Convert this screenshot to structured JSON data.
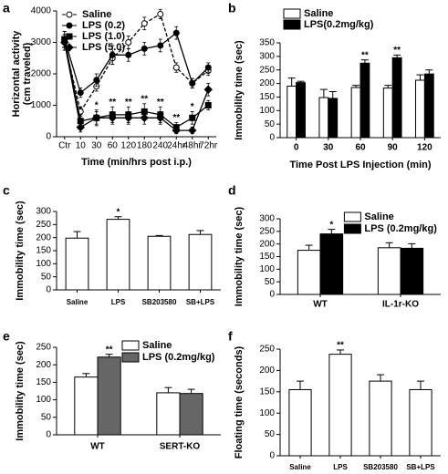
{
  "chart_data": [
    {
      "type": "line",
      "label": "a",
      "categories": [
        "Ctr",
        "10",
        "30",
        "60",
        "120",
        "180",
        "240",
        "24hr",
        "48hr",
        "72hr"
      ],
      "series": [
        {
          "name": "Saline",
          "color": "#000000",
          "marker": "open-circle",
          "dashed": true,
          "values": [
            3000,
            800,
            1600,
            2500,
            3000,
            3600,
            3900,
            2200,
            1700,
            2100
          ],
          "errors": [
            250,
            150,
            150,
            200,
            200,
            200,
            150,
            150,
            150,
            150
          ]
        },
        {
          "name": "LPS (0.2)",
          "color": "#000000",
          "marker": "circle",
          "dashed": false,
          "values": [
            3100,
            1400,
            1800,
            2600,
            2600,
            2800,
            2900,
            3300,
            1700,
            2200
          ],
          "errors": [
            250,
            150,
            200,
            300,
            200,
            200,
            200,
            200,
            150,
            150
          ]
        },
        {
          "name": "LPS (1.0)",
          "color": "#000000",
          "marker": "square",
          "dashed": false,
          "values": [
            3100,
            500,
            600,
            700,
            700,
            800,
            700,
            300,
            600,
            1000
          ],
          "errors": [
            250,
            200,
            250,
            250,
            250,
            250,
            250,
            150,
            200,
            150
          ]
        },
        {
          "name": "LPS (5.0)",
          "color": "#000000",
          "marker": "diamond",
          "dashed": false,
          "values": [
            3000,
            300,
            600,
            600,
            600,
            600,
            600,
            200,
            200,
            1500
          ],
          "errors": [
            250,
            150,
            200,
            200,
            200,
            200,
            200,
            100,
            100,
            200
          ]
        }
      ],
      "annotations": [
        {
          "text": "*",
          "category": "10",
          "series": "LPS (1.0)"
        },
        {
          "text": "*",
          "category": "30",
          "series": "LPS (1.0)"
        },
        {
          "text": "**",
          "category": "60",
          "series": "LPS (1.0)"
        },
        {
          "text": "**",
          "category": "120",
          "series": "LPS (1.0)"
        },
        {
          "text": "**",
          "category": "180",
          "series": "LPS (1.0)"
        },
        {
          "text": "**",
          "category": "240",
          "series": "LPS (1.0)"
        },
        {
          "text": "**",
          "category": "24hr",
          "series": "LPS (1.0)"
        },
        {
          "text": "*",
          "category": "48hr",
          "series": "LPS (1.0)"
        }
      ],
      "ylim": [
        0,
        4000
      ],
      "yticks": [
        0,
        1000,
        2000,
        3000,
        4000
      ],
      "ylabel": [
        "Horizontal activity",
        "(cm traveled)"
      ],
      "xlabel": "Time (min/hrs post i.p.)",
      "legend": "upper left"
    },
    {
      "type": "bar",
      "label": "b",
      "categories": [
        "0",
        "30",
        "60",
        "90",
        "120"
      ],
      "series": [
        {
          "name": "Saline",
          "color": "#ffffff",
          "values": [
            190,
            148,
            185,
            183,
            212
          ],
          "errors": [
            30,
            30,
            8,
            10,
            20
          ]
        },
        {
          "name": "LPS(0.2mg/kg)",
          "color": "#000000",
          "values": [
            203,
            145,
            275,
            295,
            235
          ],
          "errors": [
            5,
            25,
            12,
            10,
            15
          ]
        }
      ],
      "annotations": [
        {
          "text": "**",
          "category": "60",
          "series": "LPS(0.2mg/kg)"
        },
        {
          "text": "**",
          "category": "90",
          "series": "LPS(0.2mg/kg)"
        }
      ],
      "ylim": [
        0,
        350
      ],
      "yticks": [
        0,
        50,
        100,
        150,
        200,
        250,
        300,
        350
      ],
      "ylabel": [
        "Immobility time (sec)"
      ],
      "xlabel": "Time Post LPS Injection (min)",
      "legend": "top"
    },
    {
      "type": "bar",
      "label": "c",
      "categories": [
        "Saline",
        "LPS",
        "SB203580",
        "SB+LPS"
      ],
      "series": [
        {
          "name": null,
          "color": "#ffffff",
          "values": [
            198,
            270,
            205,
            212
          ],
          "errors": [
            25,
            10,
            3,
            15
          ]
        }
      ],
      "annotations": [
        {
          "text": "*",
          "category": "LPS",
          "series": null
        }
      ],
      "ylim": [
        0,
        300
      ],
      "yticks": [
        0,
        50,
        100,
        150,
        200,
        250,
        300
      ],
      "ylabel": [
        "Immobility time (sec)"
      ]
    },
    {
      "type": "bar",
      "label": "d",
      "categories": [
        "WT",
        "IL-1r-KO"
      ],
      "series": [
        {
          "name": "Saline",
          "color": "#ffffff",
          "values": [
            175,
            185
          ],
          "errors": [
            20,
            20
          ]
        },
        {
          "name": "LPS (0.2mg/kg)",
          "color": "#000000",
          "values": [
            240,
            183
          ],
          "errors": [
            18,
            18
          ]
        }
      ],
      "annotations": [
        {
          "text": "*",
          "category": "WT",
          "series": "LPS (0.2mg/kg)"
        }
      ],
      "ylim": [
        0,
        300
      ],
      "yticks": [
        0,
        50,
        100,
        150,
        200,
        250,
        300
      ],
      "ylabel": [
        "Immobility time (sec)"
      ],
      "legend": "upper right"
    },
    {
      "type": "bar",
      "label": "e",
      "categories": [
        "WT",
        "SERT-KO"
      ],
      "series": [
        {
          "name": "Saline",
          "color": "#ffffff",
          "values": [
            165,
            120
          ],
          "errors": [
            10,
            15
          ]
        },
        {
          "name": "LPS (0.2mg/kg)",
          "color": "#666666",
          "values": [
            222,
            118
          ],
          "errors": [
            8,
            12
          ]
        }
      ],
      "annotations": [
        {
          "text": "**",
          "category": "WT",
          "series": "LPS (0.2mg/kg)"
        }
      ],
      "ylim": [
        0,
        250
      ],
      "yticks": [
        0,
        50,
        100,
        150,
        200,
        250
      ],
      "ylabel": [
        "Immobility time (sec)"
      ],
      "legend": "upper right"
    },
    {
      "type": "bar",
      "label": "f",
      "categories": [
        "Saline",
        "LPS",
        "SB203580",
        "SB+LPS"
      ],
      "series": [
        {
          "name": null,
          "color": "#ffffff",
          "values": [
            155,
            238,
            175,
            155
          ],
          "errors": [
            20,
            10,
            15,
            20
          ]
        }
      ],
      "annotations": [
        {
          "text": "**",
          "category": "LPS",
          "series": null
        }
      ],
      "ylim": [
        0,
        250
      ],
      "yticks": [
        0,
        50,
        100,
        150,
        200,
        250
      ],
      "ylabel": [
        "Floating time (seconds)"
      ]
    }
  ]
}
